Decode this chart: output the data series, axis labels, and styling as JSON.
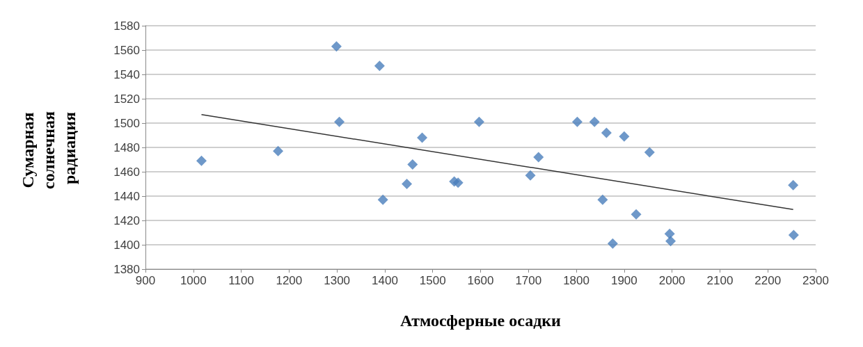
{
  "chart_data": {
    "type": "scatter",
    "xlabel": "Атмосферные осадки",
    "ylabel": "Сумарная солнечная радиация",
    "series": [
      {
        "color": "#4a7ebb",
        "marker": "diamond",
        "x": [
          1017,
          1177,
          1299,
          1305,
          1389,
          1396,
          1446,
          1458,
          1478,
          1545,
          1553,
          1597,
          1704,
          1721,
          1802,
          1838,
          1863,
          1855,
          1876,
          1900,
          1925,
          1953,
          1995,
          1997,
          2253,
          2254
        ],
        "values": [
          1469,
          1477,
          1563,
          1501,
          1547,
          1437,
          1450,
          1466,
          1488,
          1452,
          1451,
          1501,
          1457,
          1472,
          1501,
          1501,
          1492,
          1437,
          1401,
          1489,
          1425,
          1476,
          1409,
          1403,
          1449,
          1408
        ]
      },
      {
        "type": "line",
        "color": "#333333",
        "marker": "none",
        "x": [
          1017,
          2253
        ],
        "values": [
          1507,
          1429
        ]
      }
    ],
    "xlim": [
      900,
      2300
    ],
    "xticks": [
      900,
      1000,
      1100,
      1200,
      1300,
      1400,
      1500,
      1600,
      1700,
      1800,
      1900,
      2000,
      2100,
      2200,
      2300
    ],
    "ylim": [
      1380,
      1580
    ],
    "yticks": [
      1380,
      1400,
      1420,
      1440,
      1460,
      1480,
      1500,
      1520,
      1540,
      1560,
      1580
    ],
    "grid": "y"
  }
}
